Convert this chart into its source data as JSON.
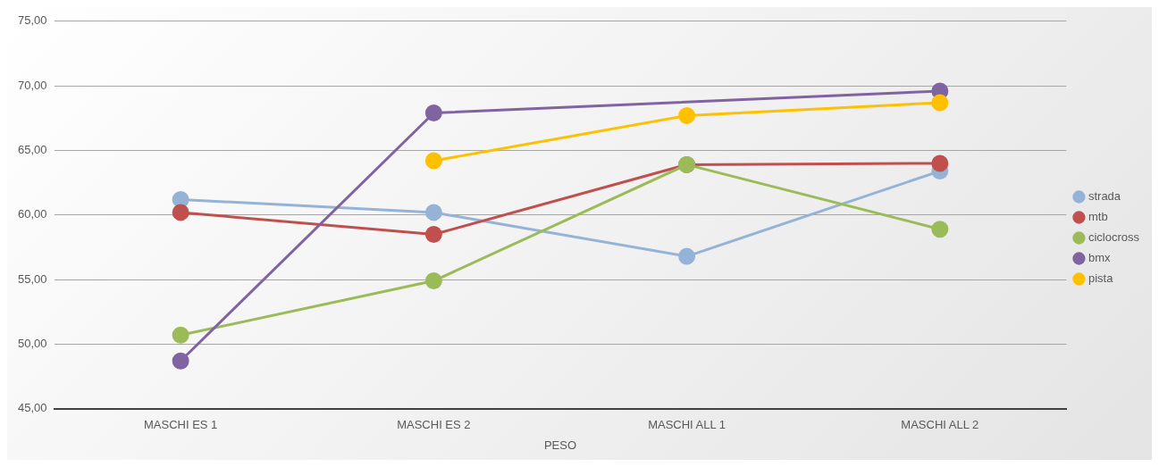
{
  "chart_data": {
    "type": "line",
    "xlabel": "PESO",
    "categories": [
      "MASCHI ES 1",
      "MASCHI ES 2",
      "MASCHI ALL 1",
      "MASCHI ALL 2"
    ],
    "series": [
      {
        "name": "strada",
        "color": "#95b3d7",
        "values": [
          61.2,
          60.2,
          56.8,
          63.4
        ]
      },
      {
        "name": "mtb",
        "color": "#c0504d",
        "values": [
          60.2,
          58.5,
          63.9,
          64.0
        ]
      },
      {
        "name": "ciclocross",
        "color": "#9bbb59",
        "values": [
          50.7,
          54.9,
          63.9,
          58.9
        ]
      },
      {
        "name": "bmx",
        "color": "#8064a2",
        "values": [
          48.7,
          67.9,
          null,
          69.6
        ]
      },
      {
        "name": "pista",
        "color": "#ffc000",
        "values": [
          null,
          64.2,
          67.7,
          68.7
        ]
      }
    ],
    "ylim": [
      45,
      75
    ],
    "yticks": [
      {
        "value": 45,
        "label": "45,00"
      },
      {
        "value": 50,
        "label": "50,00"
      },
      {
        "value": 55,
        "label": "55,00"
      },
      {
        "value": 60,
        "label": "60,00"
      },
      {
        "value": 65,
        "label": "65,00"
      },
      {
        "value": 70,
        "label": "70,00"
      },
      {
        "value": 75,
        "label": "75,00"
      }
    ],
    "grid": "y",
    "legend": "right",
    "marker": "circle",
    "line_style": "solid"
  }
}
